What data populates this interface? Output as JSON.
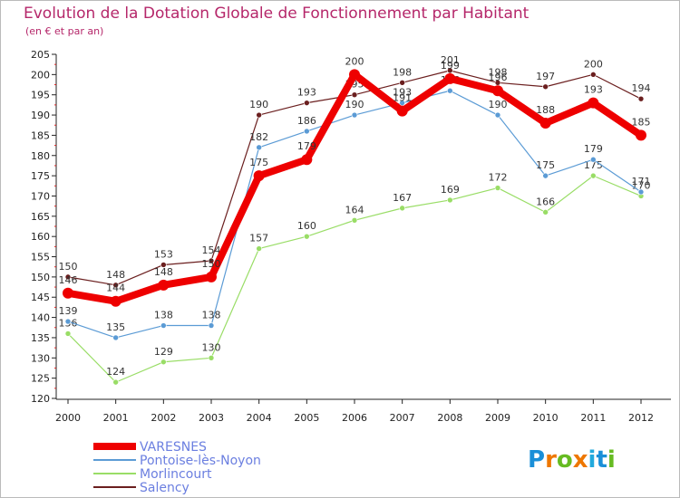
{
  "chart_data": {
    "type": "line",
    "title": "Evolution de la Dotation Globale de Fonctionnement par Habitant",
    "subtitle": "(en € et par an)",
    "xlabel": "",
    "ylabel": "",
    "ylim": [
      120,
      205
    ],
    "ytick_step": 5,
    "grid": false,
    "legend_position": "bottom-left",
    "categories": [
      "2000",
      "2001",
      "2002",
      "2003",
      "2004",
      "2005",
      "2006",
      "2007",
      "2008",
      "2009",
      "2010",
      "2011",
      "2012"
    ],
    "series": [
      {
        "name": "Salency",
        "color": "#6b1f1f",
        "values": [
          150,
          148,
          153,
          154,
          190,
          193,
          195,
          198,
          201,
          198,
          197,
          200,
          194
        ],
        "labels": [
          "150",
          "148",
          "153",
          "154",
          "190",
          "193",
          "195",
          "198",
          "201",
          "198",
          "197",
          "200",
          "194"
        ]
      },
      {
        "name": "Morlincourt",
        "color": "#99dd66",
        "values": [
          136,
          124,
          129,
          130,
          157,
          160,
          164,
          167,
          169,
          172,
          166,
          175,
          170
        ],
        "labels": [
          "136",
          "124",
          "129",
          "130",
          "157",
          "160",
          "164",
          "167",
          "169",
          "172",
          "166",
          "175",
          "170"
        ]
      },
      {
        "name": "Pontoise-lès-Noyon",
        "color": "#5b9bd5",
        "values": [
          139,
          135,
          138,
          138,
          182,
          186,
          190,
          193,
          196,
          190,
          175,
          179,
          171
        ],
        "labels": [
          "139",
          "135",
          "138",
          "138",
          "182",
          "186",
          "190",
          "193",
          "196",
          "190",
          "175",
          "179",
          "171"
        ]
      },
      {
        "name": "VARESNES",
        "color": "#ee0000",
        "values": [
          146,
          144,
          148,
          150,
          175,
          179,
          200,
          191,
          199,
          196,
          188,
          193,
          185
        ],
        "labels": [
          "146",
          "144",
          "148",
          "150",
          "175",
          "179",
          "200",
          "191",
          "199",
          "196",
          "188",
          "193",
          "185"
        ]
      }
    ],
    "legend_order": [
      "VARESNES",
      "Pontoise-lès-Noyon",
      "Morlincourt",
      "Salency"
    ]
  },
  "logo": {
    "text": "Proxiti"
  }
}
